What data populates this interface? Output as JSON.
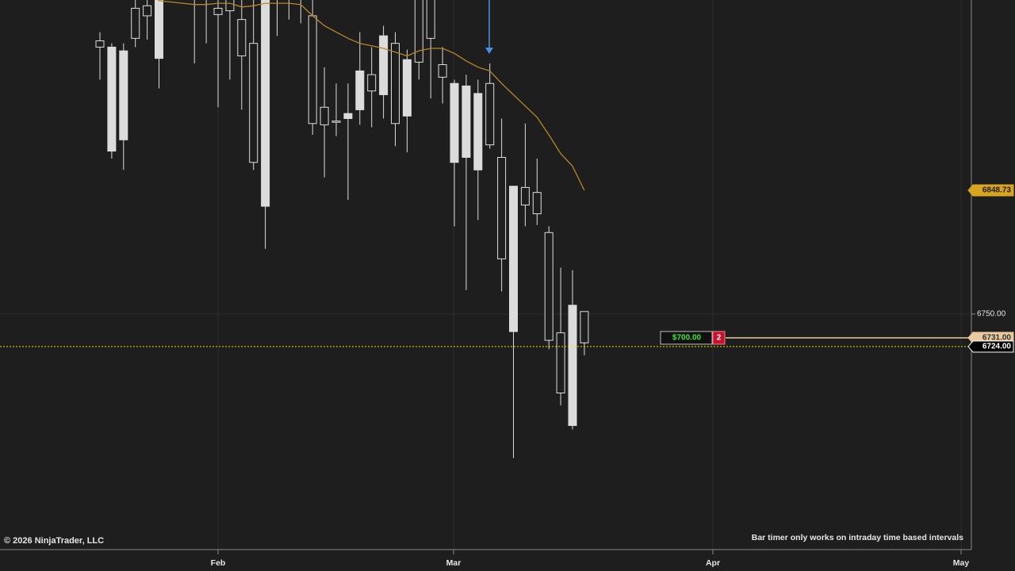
{
  "footer_left": "© 2026 NinjaTrader, LLC",
  "bar_timer_note": "Bar timer only works on intraday time based intervals",
  "chart_data": {
    "type": "candlestick",
    "categories": [
      null,
      null,
      null,
      null,
      null,
      null,
      null,
      null,
      null,
      null,
      null,
      null,
      null,
      null,
      null,
      null,
      null,
      null,
      null,
      null,
      null,
      null,
      null,
      null,
      null,
      null,
      null,
      null,
      null,
      null,
      null,
      null,
      null,
      null,
      null,
      null,
      null,
      null,
      null,
      null,
      null,
      null
    ],
    "open": [
      6963,
      6963,
      6960,
      6970,
      6988,
      7003,
      null,
      null,
      7012,
      7012,
      6989,
      6992,
      6956,
      6871,
      7003,
      7010,
      7012,
      7008,
      6902,
      6901,
      6903,
      6910,
      6944,
      6928,
      6972,
      6902,
      6953,
      6951,
      6970,
      6939,
      6934,
      6932,
      6926,
      6885,
      6794,
      6852,
      6837,
      6830,
      6729,
      6687,
      6757,
      6727
    ],
    "high": [
      6975,
      6966,
      6966,
      7005,
      7005,
      7010,
      null,
      null,
      7018,
      7018,
      7005,
      7008,
      7003,
      7005,
      7010,
      7015,
      7018,
      7015,
      7004,
      6947,
      6934,
      6934,
      6975,
      6963,
      6980,
      6975,
      6961,
      7010,
      7010,
      6963,
      6937,
      6941,
      6937,
      6950,
      6906,
      6852,
      6902,
      6874,
      6820,
      6787,
      6785,
      6752
    ],
    "low": [
      6937,
      6874,
      6865,
      6963,
      6969,
      6930,
      null,
      null,
      6950,
      6966,
      6915,
      6937,
      6913,
      6865,
      6802,
      6972,
      6985,
      6982,
      6893,
      6859,
      6892,
      6841,
      6901,
      6899,
      6906,
      6884,
      6879,
      6937,
      6922,
      6918,
      6820,
      6769,
      6825,
      6882,
      6768,
      6635,
      6820,
      6821,
      6722,
      6677,
      6658,
      6717
    ],
    "close": [
      6968,
      6880,
      6889,
      6994,
      6996,
      6954,
      null,
      null,
      7008,
      7008,
      6994,
      7001,
      6985,
      6966,
      6836,
      7005,
      7008,
      7012,
      6988,
      6915,
      6904,
      6906,
      6913,
      6941,
      6925,
      6966,
      6908,
      7003,
      7003,
      6949,
      6871,
      6875,
      6865,
      6934,
      6875,
      6736,
      6851,
      6847,
      6815,
      6735,
      6661,
      6752
    ],
    "candle_color": "#dcdcdc",
    "sma": {
      "color": "#b8862a",
      "values": [
        7008,
        7010,
        7011,
        7011,
        7010,
        7000,
        6999,
        6998,
        6997,
        6997,
        6998,
        6998,
        6995,
        6996,
        6998,
        6998,
        6998,
        6997,
        6988,
        6980,
        6975,
        6970,
        6966,
        6964,
        6962,
        6959,
        6956,
        6960,
        6962,
        6962,
        6958,
        6952,
        6947,
        6944,
        6934,
        6925,
        6916,
        6907,
        6893,
        6878,
        6868,
        6848.73
      ]
    },
    "ylim": [
      6562,
      7000.6
    ],
    "yticks": [
      {
        "value": 6750,
        "label": "6750.00"
      }
    ],
    "grid": true,
    "x_labels": [
      "Feb",
      "Mar",
      "Apr",
      "May"
    ],
    "last_price": {
      "value": 6724,
      "label": "6724.00"
    },
    "order": {
      "price": {
        "value": 6731,
        "label": "6731.00"
      },
      "pnl": "$700.00",
      "quantity": 2
    }
  }
}
